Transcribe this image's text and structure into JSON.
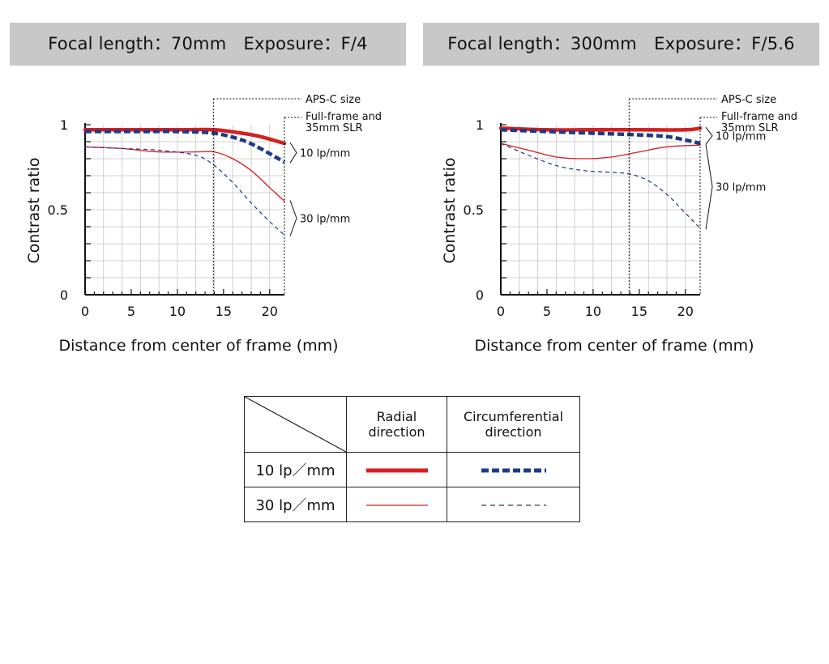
{
  "chart_data": [
    {
      "type": "line",
      "title": "Focal length：70mm　Exposure：F/4",
      "xlabel": "Distance from center of frame (mm)",
      "ylabel": "Contrast ratio",
      "xlim": [
        0,
        21.6
      ],
      "ylim": [
        0,
        1
      ],
      "xticks": [
        "0",
        "5",
        "10",
        "15",
        "20"
      ],
      "yticks": [
        "0",
        "0.5",
        "1"
      ],
      "grid": true,
      "annotations": [
        "APS-C size",
        "Full-frame and",
        "35mm SLR",
        "10 lp/mm",
        "30 lp/mm"
      ],
      "markers": {
        "aps_c": 13.9,
        "full_frame": 21.6
      },
      "series": [
        {
          "name": "10 lp/mm Radial direction",
          "x": [
            0,
            5,
            10,
            14,
            17,
            19,
            21.6
          ],
          "values": [
            0.97,
            0.97,
            0.97,
            0.97,
            0.95,
            0.93,
            0.89
          ]
        },
        {
          "name": "10 lp/mm Circumferential direction",
          "x": [
            0,
            5,
            10,
            14,
            17,
            19,
            21.6
          ],
          "values": [
            0.96,
            0.96,
            0.96,
            0.95,
            0.91,
            0.86,
            0.78
          ]
        },
        {
          "name": "30 lp/mm Radial direction",
          "x": [
            0,
            4,
            8,
            12,
            14,
            16,
            18,
            20,
            21.6
          ],
          "values": [
            0.87,
            0.86,
            0.84,
            0.84,
            0.84,
            0.8,
            0.73,
            0.63,
            0.55
          ]
        },
        {
          "name": "30 lp/mm Circumferential direction",
          "x": [
            0,
            4,
            8,
            12,
            14,
            16,
            18,
            20,
            21.6
          ],
          "values": [
            0.87,
            0.86,
            0.85,
            0.82,
            0.76,
            0.66,
            0.54,
            0.43,
            0.35
          ]
        }
      ]
    },
    {
      "type": "line",
      "title": "Focal length：300mm　Exposure：F/5.6",
      "xlabel": "Distance from center of frame (mm)",
      "ylabel": "Contrast ratio",
      "xlim": [
        0,
        21.6
      ],
      "ylim": [
        0,
        1
      ],
      "xticks": [
        "0",
        "5",
        "10",
        "15",
        "20"
      ],
      "yticks": [
        "0",
        "0.5",
        "1"
      ],
      "grid": true,
      "annotations": [
        "APS-C size",
        "Full-frame and",
        "35mm SLR",
        "10 lp/mm",
        "30 lp/mm"
      ],
      "markers": {
        "aps_c": 13.9,
        "full_frame": 21.6
      },
      "series": [
        {
          "name": "10 lp/mm Radial direction",
          "x": [
            0,
            5,
            10,
            15,
            20,
            21.6
          ],
          "values": [
            0.98,
            0.97,
            0.97,
            0.97,
            0.97,
            0.98
          ]
        },
        {
          "name": "10 lp/mm Circumferential direction",
          "x": [
            0,
            5,
            10,
            15,
            18,
            20,
            21.6
          ],
          "values": [
            0.97,
            0.96,
            0.95,
            0.94,
            0.93,
            0.91,
            0.89
          ]
        },
        {
          "name": "30 lp/mm Radial direction",
          "x": [
            0,
            3,
            6,
            9,
            12,
            15,
            18,
            21.6
          ],
          "values": [
            0.89,
            0.85,
            0.81,
            0.8,
            0.81,
            0.84,
            0.87,
            0.88
          ]
        },
        {
          "name": "30 lp/mm Circumferential direction",
          "x": [
            0,
            3,
            6,
            9,
            12,
            14,
            16,
            18,
            20,
            21.6
          ],
          "values": [
            0.89,
            0.82,
            0.76,
            0.73,
            0.72,
            0.71,
            0.67,
            0.59,
            0.48,
            0.39
          ]
        }
      ]
    }
  ],
  "legend": {
    "col_radial": [
      "Radial",
      "direction"
    ],
    "col_circ": [
      "Circumferential",
      "direction"
    ],
    "row_10": "10 lp／mm",
    "row_30": "30 lp／mm"
  },
  "colors": {
    "radial": "#d42020",
    "circumferential": "#1e3a88",
    "title_bar": "#c8c8c8"
  }
}
